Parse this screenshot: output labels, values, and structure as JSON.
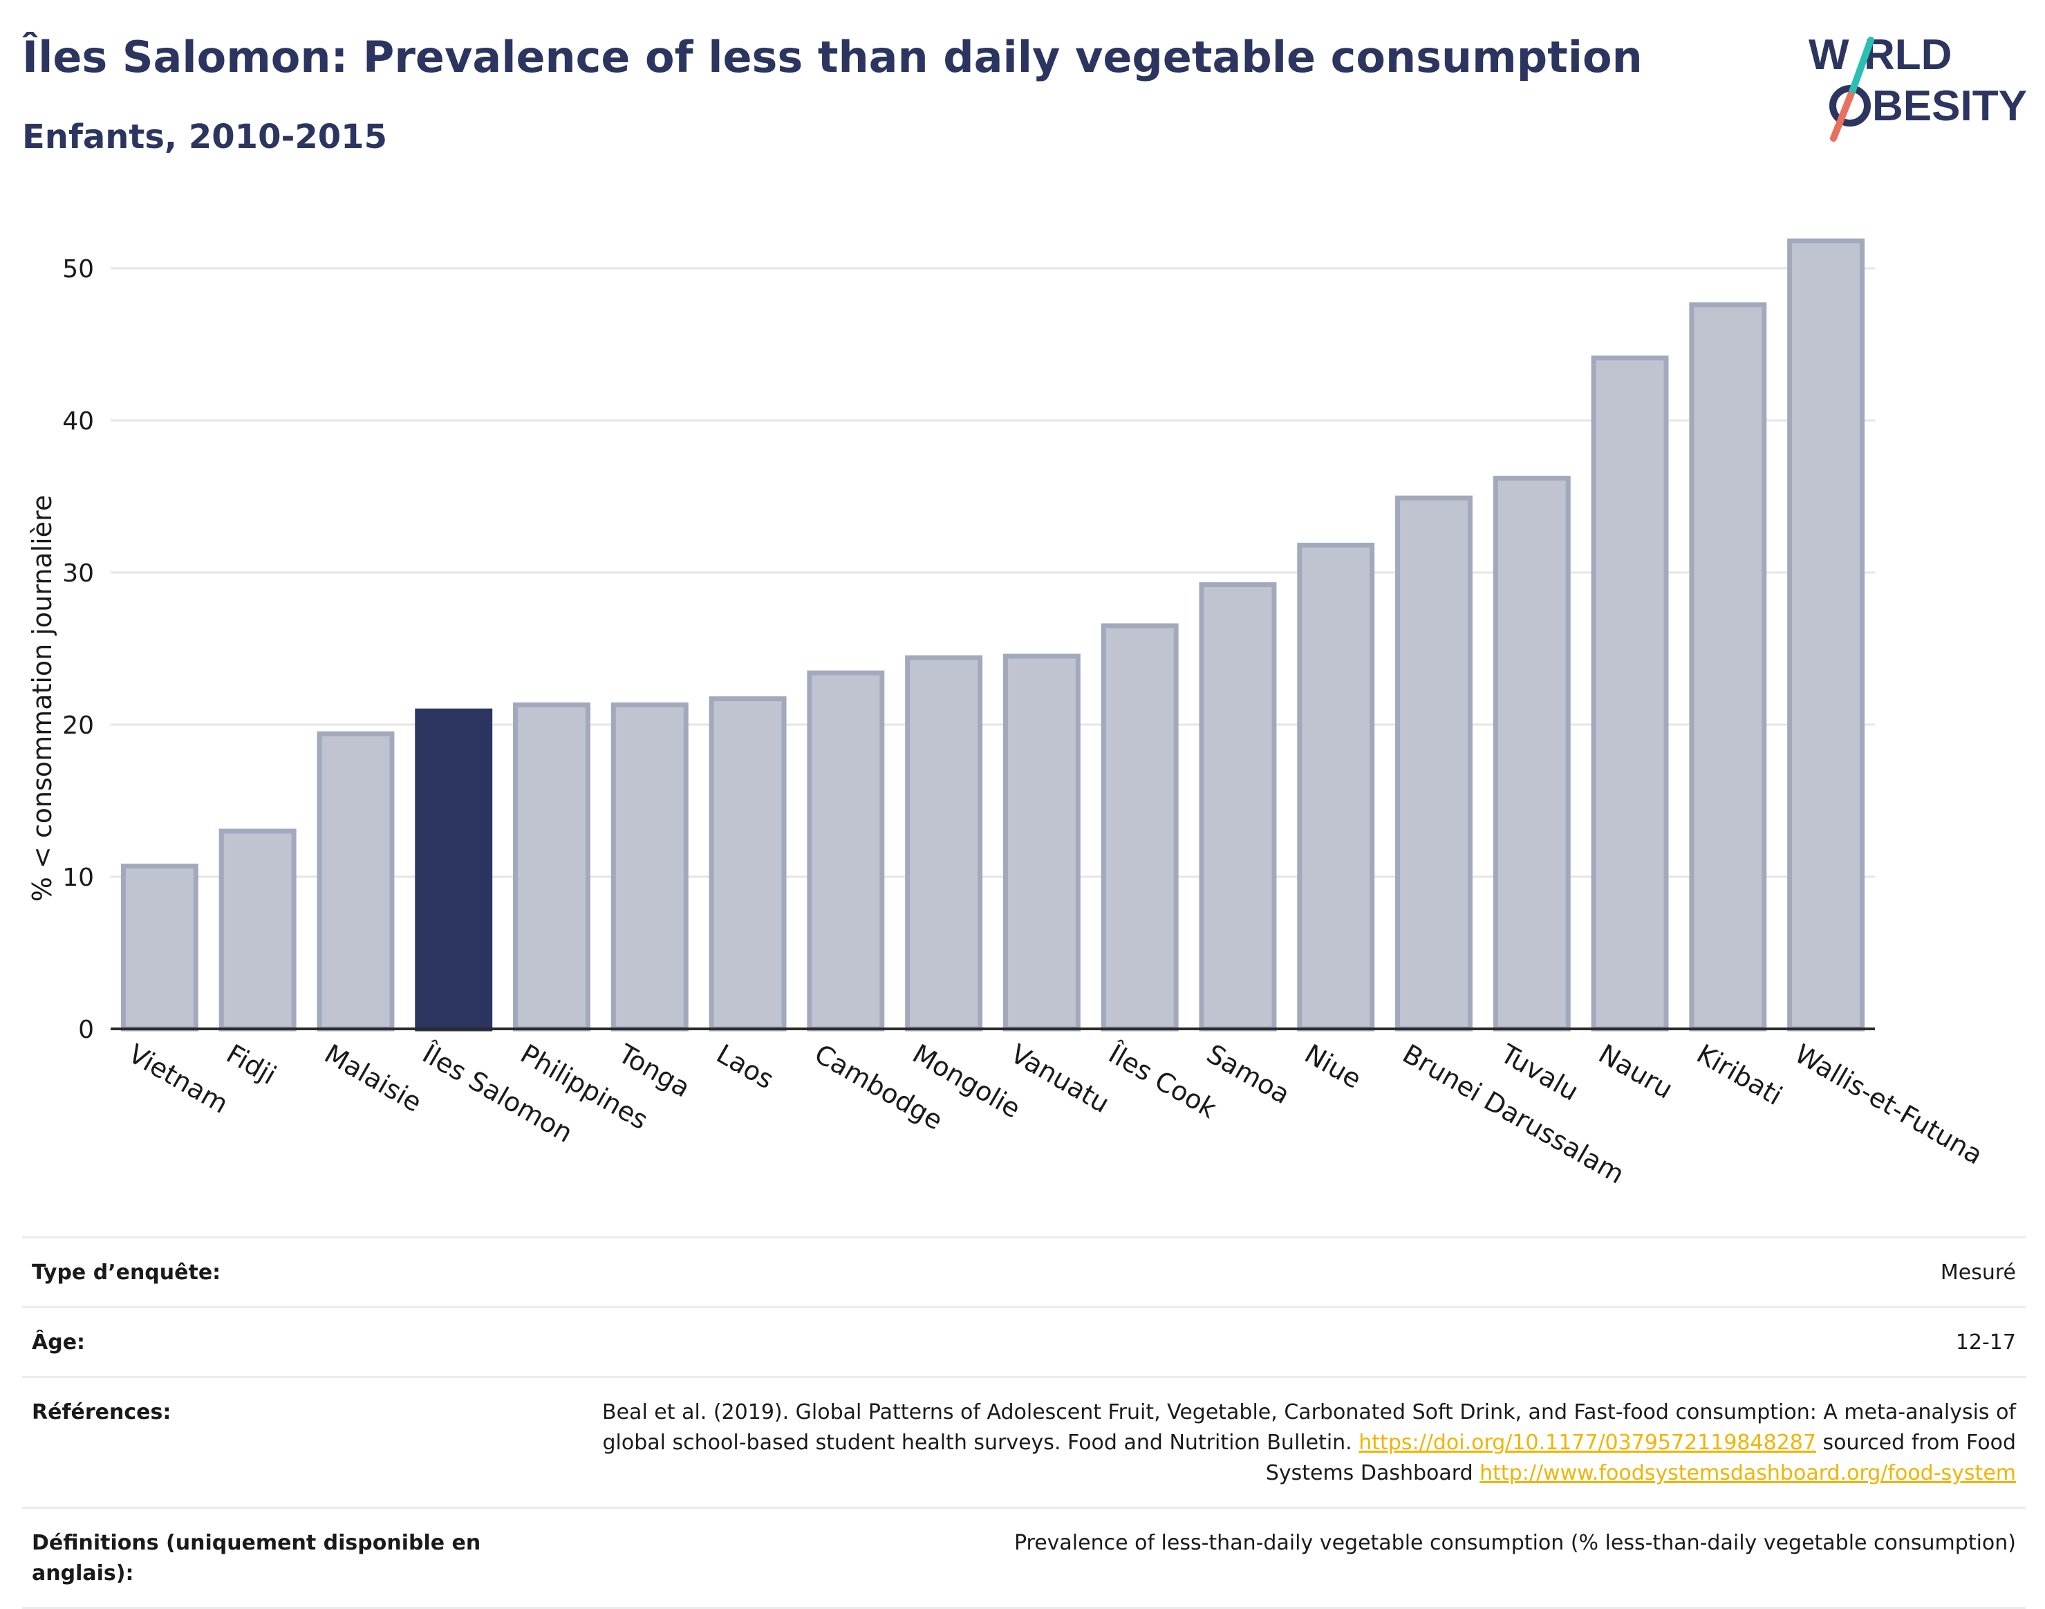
{
  "header": {
    "title": "Îles Salomon: Prevalence of less than daily vegetable consumption",
    "subtitle": "Enfants, 2010-2015",
    "logo_text": [
      "W",
      "RLD",
      "BESITY"
    ]
  },
  "chart_data": {
    "type": "bar",
    "ylabel": "% < consommation journalière",
    "ylim": [
      0,
      54
    ],
    "yticks": [
      0,
      10,
      20,
      30,
      40,
      50
    ],
    "grid": true,
    "highlight": "Îles Salomon",
    "colors": {
      "bar": "#c0c4d0",
      "bar_border": "#a3a9bc",
      "highlight": "#2b3560"
    },
    "categories": [
      "Vietnam",
      "Fidji",
      "Malaisie",
      "Îles Salomon",
      "Philippines",
      "Tonga",
      "Laos",
      "Cambodge",
      "Mongolie",
      "Vanuatu",
      "Îles Cook",
      "Samoa",
      "Niue",
      "Brunei Darussalam",
      "Tuvalu",
      "Nauru",
      "Kiribati",
      "Wallis-et-Futuna"
    ],
    "values": [
      10.7,
      13.0,
      19.4,
      20.9,
      21.3,
      21.3,
      21.7,
      23.4,
      24.4,
      24.5,
      26.5,
      29.2,
      31.8,
      34.9,
      36.2,
      44.1,
      47.6,
      51.8
    ]
  },
  "info": {
    "rows": [
      {
        "label": "Type d’enquête:",
        "value": "Mesuré"
      },
      {
        "label": "Âge:",
        "value": "12-17"
      },
      {
        "label": "Références:",
        "value_parts": {
          "text1": "Beal et al. (2019). Global Patterns of Adolescent Fruit, Vegetable, Carbonated Soft Drink, and Fast-food consumption: A meta-analysis of global school-based student health surveys. Food and Nutrition Bulletin.",
          "link1": "https://doi.org/10.1177/0379572119848287",
          "text2": "sourced from Food Systems Dashboard",
          "link2": "http://www.foodsystemsdashboard.org/food-system"
        }
      },
      {
        "label": "Définitions (uniquement disponible en anglais):",
        "value": "Prevalence of less-than-daily vegetable consumption (% less-than-daily vegetable consumption)"
      }
    ]
  }
}
